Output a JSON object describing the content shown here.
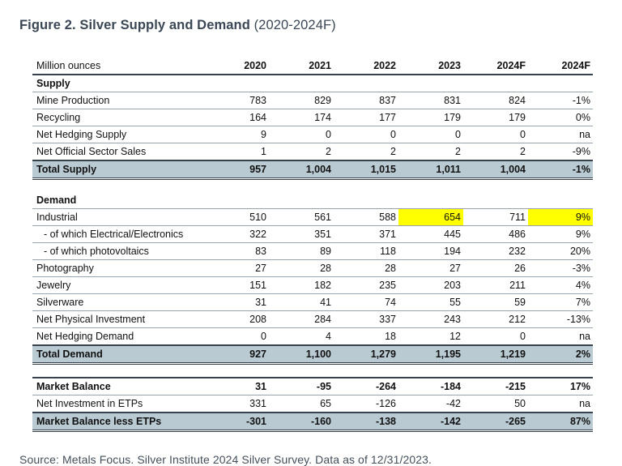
{
  "title": {
    "main": "Figure 2. Silver Supply and Demand",
    "range": " (2020-2024F)"
  },
  "table": {
    "header": [
      "Million ounces",
      "2020",
      "2021",
      "2022",
      "2023",
      "2024F",
      "2024F"
    ],
    "rows": [
      {
        "type": "section",
        "label": "Supply"
      },
      {
        "type": "data",
        "label": "Mine Production",
        "values": [
          "783",
          "829",
          "837",
          "831",
          "824",
          "-1%"
        ]
      },
      {
        "type": "data",
        "label": "Recycling",
        "values": [
          "164",
          "174",
          "177",
          "179",
          "179",
          "0%"
        ]
      },
      {
        "type": "data",
        "label": "Net Hedging Supply",
        "values": [
          "9",
          "0",
          "0",
          "0",
          "0",
          "na"
        ]
      },
      {
        "type": "data",
        "label": "Net Official Sector Sales",
        "values": [
          "1",
          "2",
          "2",
          "2",
          "2",
          "-9%"
        ]
      },
      {
        "type": "total",
        "label": "Total Supply",
        "values": [
          "957",
          "1,004",
          "1,015",
          "1,011",
          "1,004",
          "-1%"
        ],
        "highlight": [
          3
        ]
      },
      {
        "type": "gap"
      },
      {
        "type": "section",
        "label": "Demand"
      },
      {
        "type": "data",
        "label": "Industrial",
        "values": [
          "510",
          "561",
          "588",
          "654",
          "711",
          "9%"
        ],
        "highlight": [
          3,
          5
        ]
      },
      {
        "type": "data",
        "label": "- of which Electrical/Electronics",
        "indent": true,
        "values": [
          "322",
          "351",
          "371",
          "445",
          "486",
          "9%"
        ]
      },
      {
        "type": "data",
        "label": "- of which photovoltaics",
        "indent": true,
        "values": [
          "83",
          "89",
          "118",
          "194",
          "232",
          "20%"
        ]
      },
      {
        "type": "data",
        "label": "Photography",
        "values": [
          "27",
          "28",
          "28",
          "27",
          "26",
          "-3%"
        ]
      },
      {
        "type": "data",
        "label": "Jewelry",
        "values": [
          "151",
          "182",
          "235",
          "203",
          "211",
          "4%"
        ]
      },
      {
        "type": "data",
        "label": "Silverware",
        "values": [
          "31",
          "41",
          "74",
          "55",
          "59",
          "7%"
        ]
      },
      {
        "type": "data",
        "label": "Net Physical Investment",
        "values": [
          "208",
          "284",
          "337",
          "243",
          "212",
          "-13%"
        ]
      },
      {
        "type": "data",
        "label": "Net Hedging Demand",
        "values": [
          "0",
          "4",
          "18",
          "12",
          "0",
          "na"
        ]
      },
      {
        "type": "total",
        "label": "Total Demand",
        "values": [
          "927",
          "1,100",
          "1,279",
          "1,195",
          "1,219",
          "2%"
        ],
        "highlight": [
          3
        ]
      },
      {
        "type": "gap"
      },
      {
        "type": "bold",
        "label": "Market Balance",
        "values": [
          "31",
          "-95",
          "-264",
          "-184",
          "-215",
          "17%"
        ],
        "top_border": true
      },
      {
        "type": "data",
        "label": "Net Investment in ETPs",
        "values": [
          "331",
          "65",
          "-126",
          "-42",
          "50",
          "na"
        ]
      },
      {
        "type": "total",
        "label": "Market Balance less ETPs",
        "values": [
          "-301",
          "-160",
          "-138",
          "-142",
          "-265",
          "87%"
        ],
        "highlight": [
          3
        ]
      }
    ]
  },
  "footer": {
    "source": "Source: Metals Focus. Silver Institute 2024 Silver Survey. Data as of 12/31/2023."
  },
  "colors": {
    "title_text": "#3b4754",
    "total_row_bg": "#b9cad3",
    "highlight_bg": "#ffff00",
    "dark_border": "#37424e",
    "thin_border": "#9aa4ad"
  }
}
